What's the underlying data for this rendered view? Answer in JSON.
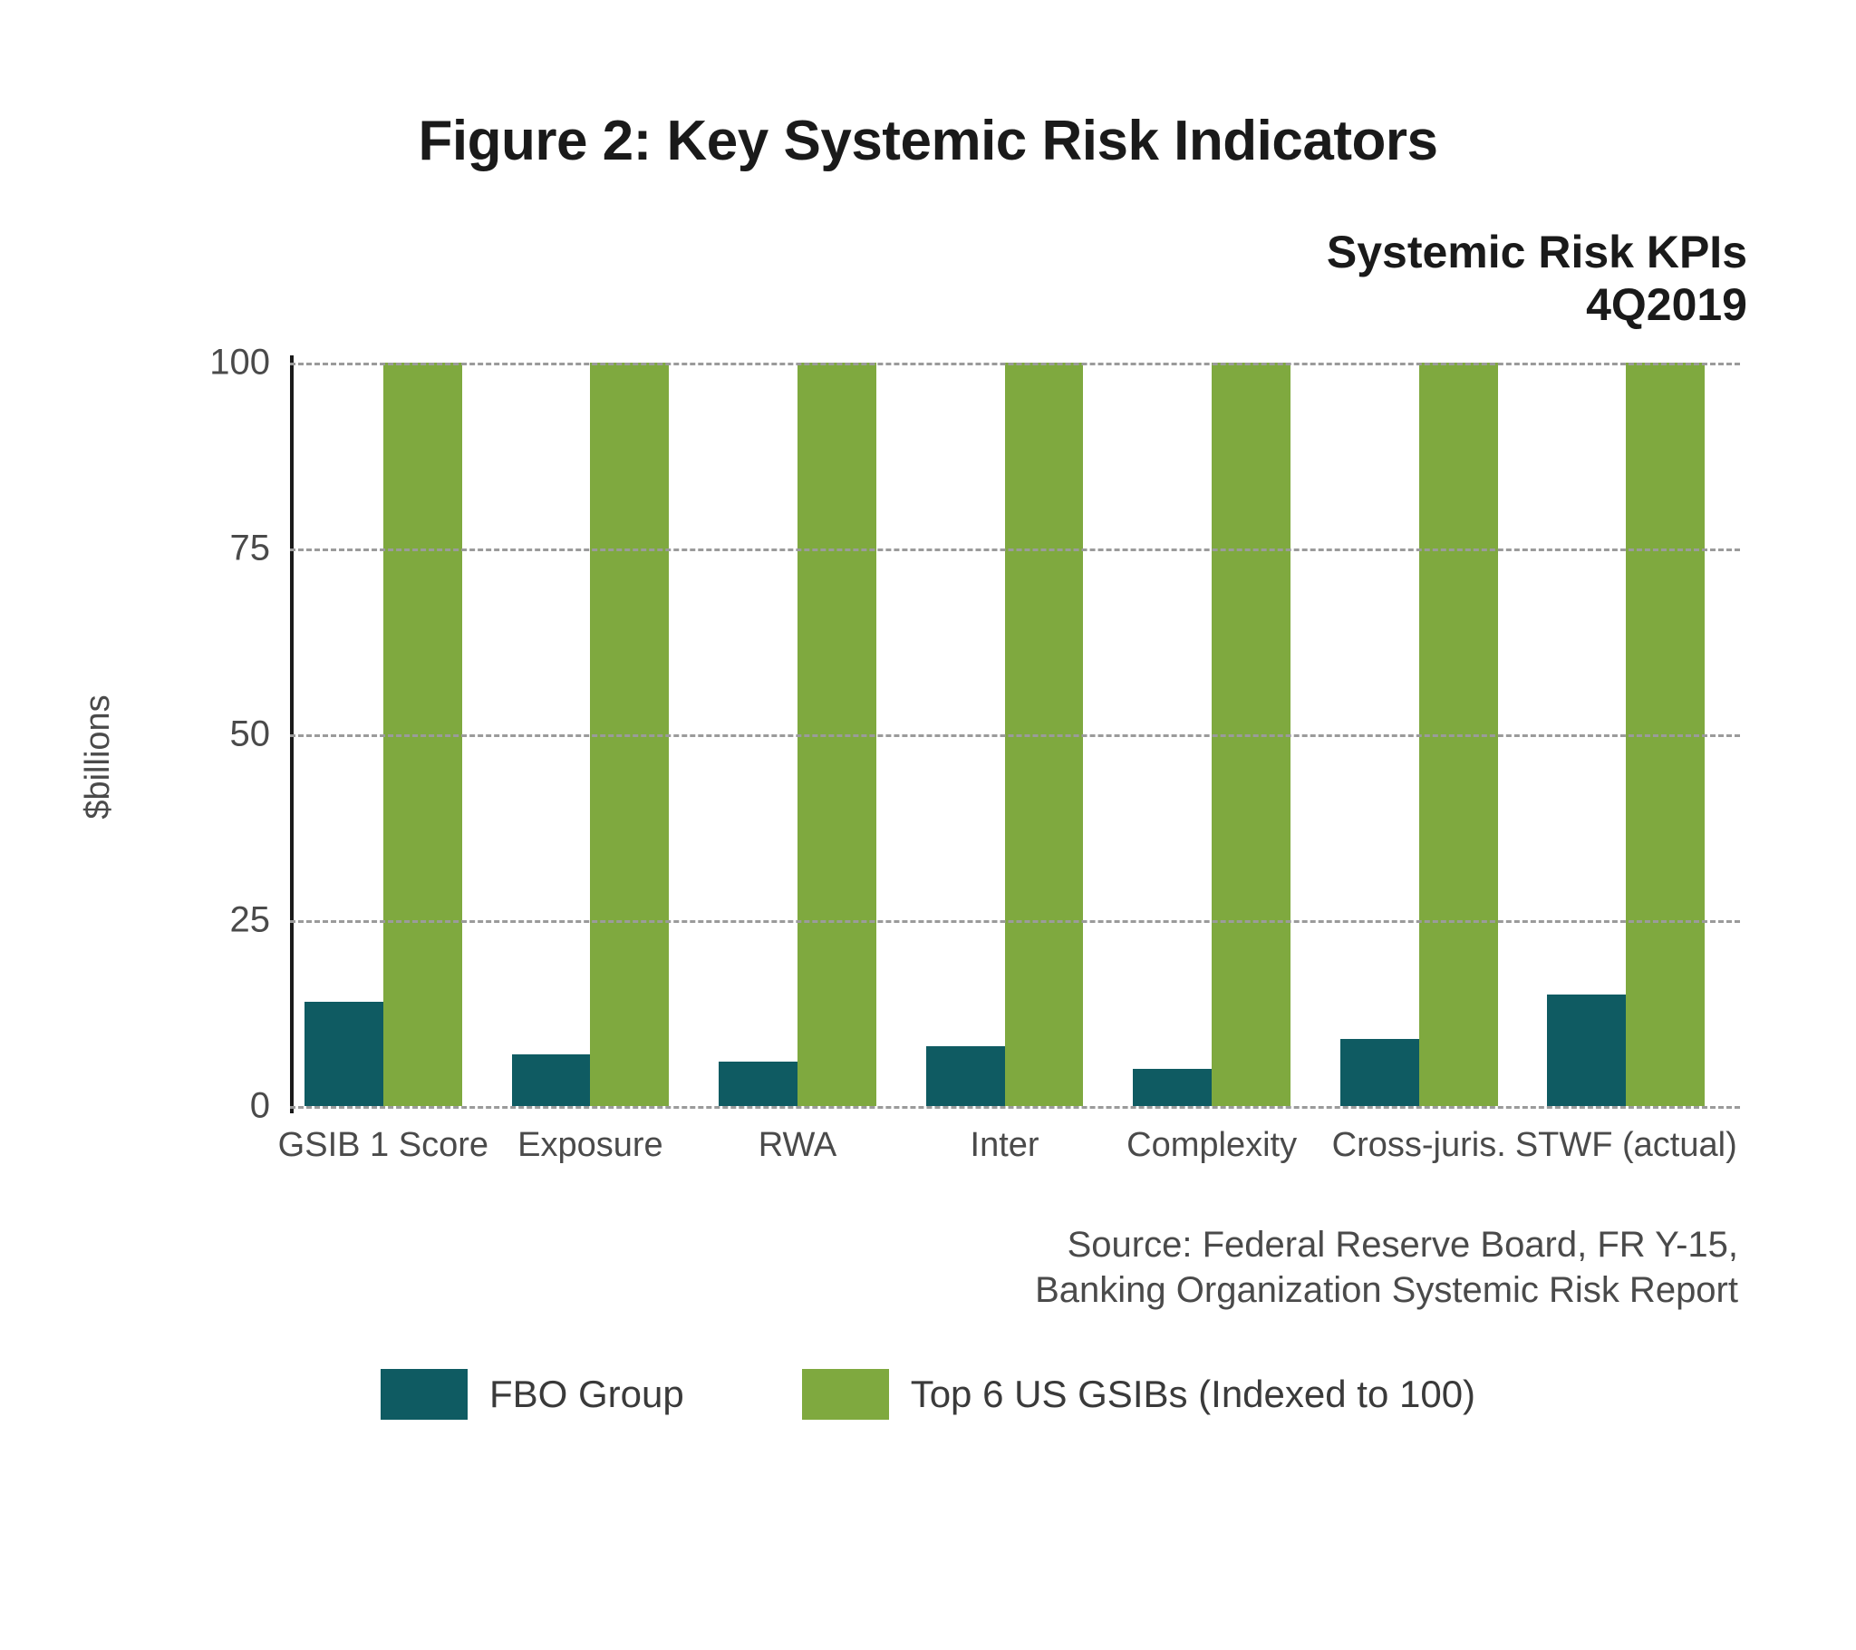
{
  "title": "Figure 2: Key Systemic Risk Indicators",
  "subtitle_line1": "Systemic Risk KPIs",
  "subtitle_line2": "4Q2019",
  "chart": {
    "type": "bar",
    "ylabel": "$billions",
    "ylim": [
      0,
      100
    ],
    "ytick_step": 25,
    "yticks": [
      0,
      25,
      50,
      75,
      100
    ],
    "grid_on": true,
    "grid_color": "#9b9b9b",
    "grid_dash": "dashed",
    "axis_color": "#1a1a1a",
    "background_color": "#ffffff",
    "label_fontsize": 38,
    "tick_fontsize": 40,
    "bar_gap_within_group": 0,
    "bar_width_fraction_of_group": 0.38,
    "categories": [
      "GSIB 1 Score",
      "Exposure",
      "RWA",
      "Inter",
      "Complexity",
      "Cross-juris.",
      "STWF (actual)"
    ],
    "series": [
      {
        "name": "FBO Group",
        "color": "#0f5b62",
        "values": [
          14,
          7,
          6,
          8,
          5,
          9,
          15
        ]
      },
      {
        "name": "Top 6 US GSIBs (Indexed to 100)",
        "color": "#7fa93f",
        "values": [
          100,
          100,
          100,
          100,
          100,
          100,
          100
        ]
      }
    ]
  },
  "source_line1": "Source: Federal Reserve Board, FR Y-15,",
  "source_line2": "Banking Organization Systemic Risk Report",
  "legend": {
    "items": [
      {
        "label": "FBO Group",
        "color": "#0f5b62"
      },
      {
        "label": "Top 6 US GSIBs (Indexed to 100)",
        "color": "#7fa93f"
      }
    ]
  }
}
